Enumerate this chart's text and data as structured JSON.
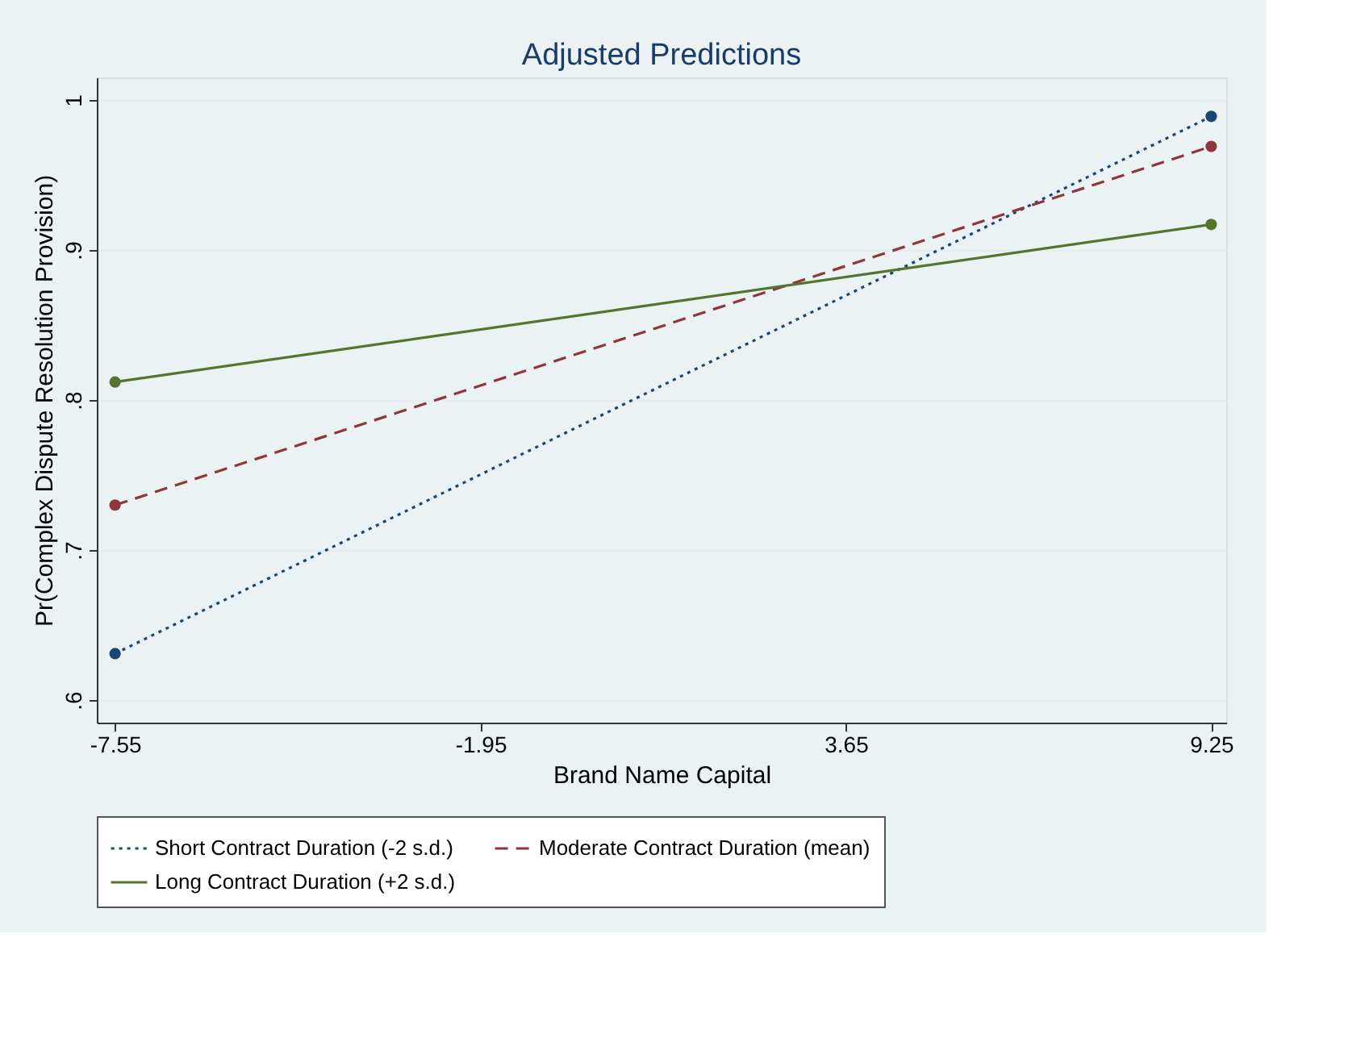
{
  "chart_data": {
    "type": "line",
    "title": "Adjusted Predictions",
    "xlabel": "Brand Name Capital",
    "ylabel": "Pr(Complex Dispute Resolution Provision)",
    "x": [
      -7.55,
      9.25
    ],
    "series": [
      {
        "name": "Short Contract Duration (-2 s.d.)",
        "color": "#1a476f",
        "values": [
          0.631,
          0.989
        ],
        "line_style": "dotted"
      },
      {
        "name": "Moderate Contract Duration (mean)",
        "color": "#90353b",
        "values": [
          0.73,
          0.969
        ],
        "line_style": "dashed"
      },
      {
        "name": "Long Contract Duration (+2 s.d.)",
        "color": "#55752f",
        "values": [
          0.812,
          0.917
        ],
        "line_style": "solid"
      }
    ],
    "xlim": [
      -7.83,
      9.48
    ],
    "xticks": [
      -7.55,
      -1.95,
      3.65,
      9.25
    ],
    "ylim": [
      0.585,
      1.015
    ],
    "yticks": [
      {
        "value": 0.6,
        "label": ".6"
      },
      {
        "value": 0.7,
        "label": ".7"
      },
      {
        "value": 0.8,
        "label": ".8"
      },
      {
        "value": 0.9,
        "label": ".9"
      },
      1
    ],
    "grid": "y",
    "legend": "bottom",
    "marker": "circle"
  }
}
